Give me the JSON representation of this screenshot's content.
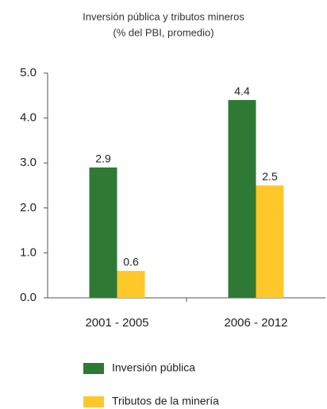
{
  "chart_data": {
    "type": "bar",
    "title": "Inversión  pública y tributos mineros",
    "subtitle": "(% del PBI, promedio)",
    "categories": [
      "2001 - 2005",
      "2006 -  2012"
    ],
    "series": [
      {
        "name": "Inversión pública",
        "color": "#2e7a34",
        "values": [
          2.9,
          4.4
        ]
      },
      {
        "name": "Tributos de la minería",
        "color": "#ffc82a",
        "values": [
          0.6,
          2.5
        ]
      }
    ],
    "ylim": [
      0,
      5
    ],
    "yticks": [
      {
        "value": 0,
        "label": "0.0"
      },
      {
        "value": 1,
        "label": "1.0"
      },
      {
        "value": 2,
        "label": "2.0"
      },
      {
        "value": 3,
        "label": "3.0"
      },
      {
        "value": 4,
        "label": "4.0"
      },
      {
        "value": 5,
        "label": "5.0"
      }
    ]
  }
}
